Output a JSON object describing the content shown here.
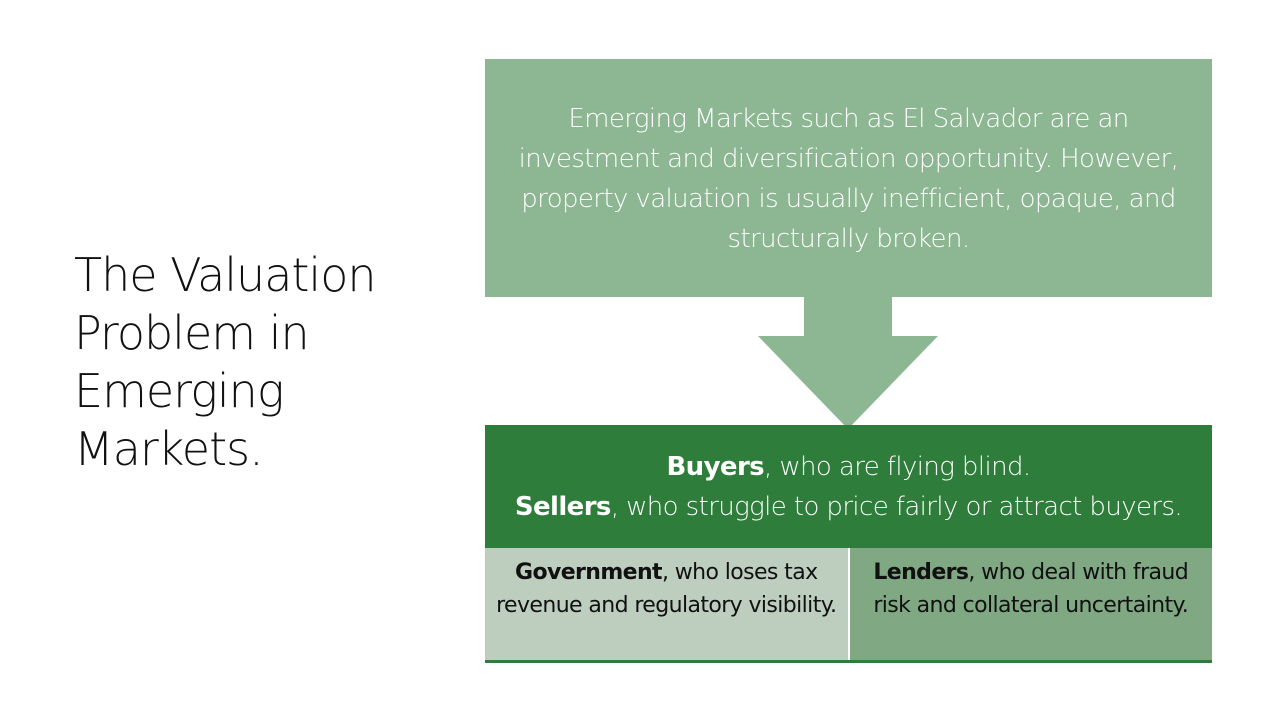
{
  "title": {
    "line1": "The Valuation",
    "line2": "Problem in",
    "line3": "Emerging",
    "line4": "Markets."
  },
  "top_box": {
    "text": "Emerging Markets such as El Salvador are an investment and diversification opportunity. However, property valuation is usually inefficient, opaque, and structurally broken."
  },
  "bottom_box": {
    "buyers_bold": "Buyers",
    "buyers_rest": ", who are flying blind.",
    "sellers_bold": "Sellers",
    "sellers_rest": ", who struggle to price fairly or attract buyers."
  },
  "sub_boxes": {
    "government_bold": "Government",
    "government_rest": ", who loses tax revenue and regulatory visibility.",
    "lenders_bold": "Lenders",
    "lenders_rest": ", who deal with fraud risk and collateral uncertainty."
  },
  "colors": {
    "top_box": "#8db692",
    "bottom_box": "#2e7d3b",
    "sub_left": "#bdcdbe",
    "sub_right": "#7fa883"
  }
}
